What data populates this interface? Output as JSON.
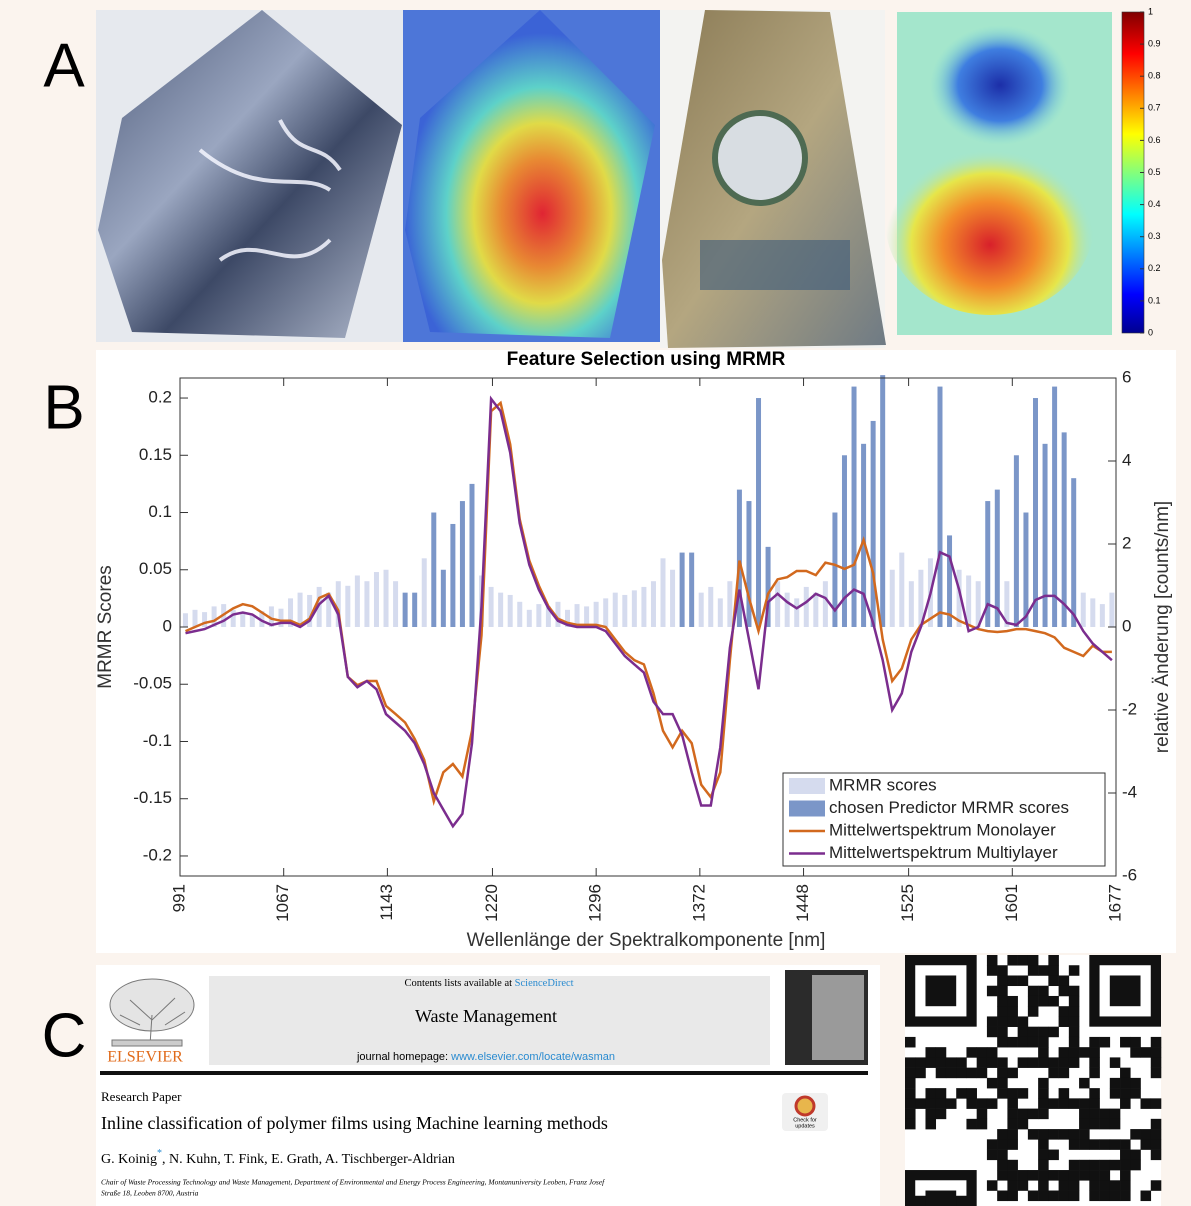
{
  "panel_labels": [
    "A",
    "B",
    "C"
  ],
  "panel_a": {
    "colorbar": {
      "lim": [
        0,
        1
      ],
      "ticks": [
        1,
        0.9,
        0.8,
        0.7,
        0.6,
        0.5,
        0.4,
        0.3,
        0.2,
        0.1,
        0
      ]
    }
  },
  "chart_data": {
    "type": "combo",
    "title": "Feature Selection using MRMR",
    "x_label": "Wellenlänge der Spektralkomponente [nm]",
    "y_label": "MRMR Scores",
    "y2_label": "relative Änderung [counts/nm]",
    "xlim": [
      991,
      1677
    ],
    "xticks": [
      991,
      1067,
      1143,
      1220,
      1296,
      1372,
      1448,
      1525,
      1601,
      1677
    ],
    "ylim": [
      -0.2175,
      0.2175
    ],
    "yticks": [
      -0.2,
      -0.15,
      -0.1,
      -0.05,
      0,
      0.05,
      0.1,
      0.15,
      0.2
    ],
    "y2lim": [
      -6,
      6
    ],
    "y2ticks": [
      -6,
      -4,
      -2,
      0,
      2,
      4,
      6
    ],
    "legend": "lower right",
    "x": [
      995,
      1002,
      1009,
      1016,
      1023,
      1030,
      1037,
      1044,
      1051,
      1058,
      1065,
      1072,
      1079,
      1086,
      1093,
      1100,
      1107,
      1114,
      1121,
      1128,
      1135,
      1142,
      1149,
      1156,
      1163,
      1170,
      1177,
      1184,
      1191,
      1198,
      1205,
      1212,
      1219,
      1226,
      1233,
      1240,
      1247,
      1254,
      1261,
      1268,
      1275,
      1282,
      1289,
      1296,
      1303,
      1310,
      1317,
      1324,
      1331,
      1338,
      1345,
      1352,
      1359,
      1366,
      1373,
      1380,
      1387,
      1394,
      1401,
      1408,
      1415,
      1422,
      1429,
      1436,
      1443,
      1450,
      1457,
      1464,
      1471,
      1478,
      1485,
      1492,
      1499,
      1506,
      1513,
      1520,
      1527,
      1534,
      1541,
      1548,
      1555,
      1562,
      1569,
      1576,
      1583,
      1590,
      1597,
      1604,
      1611,
      1618,
      1625,
      1632,
      1639,
      1646,
      1653,
      1660,
      1667,
      1674
    ],
    "series": [
      {
        "name": "MRMR scores",
        "type": "bar",
        "color": "#d5dbee",
        "values": [
          0.012,
          0.015,
          0.013,
          0.018,
          0.02,
          0.015,
          0.012,
          0.01,
          0.014,
          0.018,
          0.016,
          0.025,
          0.03,
          0.028,
          0.035,
          0.03,
          0.04,
          0.036,
          0.045,
          0.04,
          0.048,
          0.05,
          0.04,
          null,
          null,
          0.06,
          null,
          null,
          null,
          null,
          null,
          0.045,
          0.035,
          0.03,
          0.028,
          0.022,
          0.015,
          0.02,
          0.018,
          0.022,
          0.015,
          0.02,
          0.018,
          0.022,
          0.025,
          0.03,
          0.028,
          0.032,
          0.035,
          0.04,
          0.06,
          0.05,
          null,
          null,
          0.03,
          0.035,
          0.025,
          0.04,
          null,
          null,
          null,
          null,
          0.04,
          0.03,
          0.025,
          0.035,
          0.03,
          0.04,
          null,
          null,
          null,
          null,
          null,
          null,
          0.05,
          0.065,
          0.04,
          0.05,
          0.06,
          null,
          null,
          0.05,
          0.045,
          0.04,
          null,
          null,
          0.04,
          null,
          null,
          null,
          null,
          null,
          null,
          null,
          0.03,
          0.025,
          0.02,
          0.03
        ]
      },
      {
        "name": "chosen Predictor MRMR scores",
        "type": "bar",
        "color": "#7b96c8",
        "values": [
          null,
          null,
          null,
          null,
          null,
          null,
          null,
          null,
          null,
          null,
          null,
          null,
          null,
          null,
          null,
          null,
          null,
          null,
          null,
          null,
          null,
          null,
          null,
          0.03,
          0.03,
          null,
          0.1,
          0.05,
          0.09,
          0.11,
          0.125,
          null,
          null,
          null,
          null,
          null,
          null,
          null,
          null,
          null,
          null,
          null,
          null,
          null,
          null,
          null,
          null,
          null,
          null,
          null,
          null,
          null,
          0.065,
          0.065,
          null,
          null,
          null,
          null,
          0.12,
          0.11,
          0.2,
          0.07,
          null,
          null,
          null,
          null,
          null,
          null,
          0.1,
          0.15,
          0.21,
          0.16,
          0.18,
          0.22,
          null,
          null,
          null,
          null,
          null,
          0.21,
          0.08,
          null,
          null,
          null,
          0.11,
          0.12,
          null,
          0.15,
          0.1,
          0.2,
          0.16,
          0.21,
          0.17,
          0.13,
          null,
          null,
          null,
          null
        ]
      },
      {
        "name": "Mittelwertspektrum Monolayer",
        "type": "line",
        "axis": "y2",
        "color": "#d2691e",
        "values": [
          -0.1,
          0,
          0.1,
          0.15,
          0.3,
          0.45,
          0.55,
          0.5,
          0.35,
          0.2,
          0.15,
          0.15,
          0.05,
          0.2,
          0.7,
          0.8,
          0.4,
          -1.2,
          -1.4,
          -1.3,
          -1.3,
          -1.9,
          -2.1,
          -2.3,
          -2.7,
          -3.2,
          -4.2,
          -3.5,
          -3.3,
          -3.6,
          -2.5,
          -0.2,
          5.2,
          5.4,
          4.4,
          2.6,
          1.6,
          1,
          0.5,
          0.2,
          0.1,
          0.05,
          0.05,
          0.05,
          0,
          -0.3,
          -0.6,
          -0.8,
          -0.9,
          -1.6,
          -2.5,
          -2.9,
          -2.5,
          -2.8,
          -3.8,
          -4.1,
          -3.5,
          -0.8,
          1.6,
          0.7,
          -0.1,
          0.8,
          1.15,
          1.2,
          1.35,
          1.35,
          1.25,
          1.55,
          1.5,
          1.4,
          1.5,
          2.1,
          1.3,
          -0.3,
          -1.3,
          -1,
          -0.3,
          0.05,
          0.2,
          0.35,
          0.3,
          0.15,
          0.05,
          -0.05,
          -0.1,
          -0.12,
          -0.1,
          -0.05,
          -0.05,
          -0.1,
          -0.15,
          -0.25,
          -0.5,
          -0.6,
          -0.7,
          -0.45,
          -0.6,
          -0.6
        ]
      },
      {
        "name": "Mittelwertspektrum Multiylayer",
        "type": "line",
        "axis": "y2",
        "color": "#7b2d8e",
        "values": [
          -0.15,
          -0.1,
          -0.05,
          0.05,
          0.15,
          0.3,
          0.35,
          0.3,
          0.15,
          0.05,
          0.1,
          0.1,
          0,
          0.15,
          0.55,
          0.75,
          0.3,
          -1.2,
          -1.45,
          -1.3,
          -1.5,
          -2.1,
          -2.3,
          -2.5,
          -2.8,
          -3.3,
          -4,
          -4.4,
          -4.8,
          -4.5,
          -2.8,
          0.5,
          5.5,
          5.2,
          4.2,
          2.5,
          1.5,
          0.9,
          0.45,
          0.15,
          0.05,
          0,
          0,
          0,
          -0.1,
          -0.4,
          -0.7,
          -0.9,
          -1.1,
          -1.8,
          -2.1,
          -2.1,
          -2.6,
          -3.5,
          -4.3,
          -4.3,
          -2.9,
          -0.5,
          0.9,
          -0.3,
          -1.5,
          0.6,
          0.8,
          0.6,
          0.45,
          0.6,
          0.8,
          0.7,
          0.4,
          0.7,
          0.9,
          0.8,
          0.1,
          -0.8,
          -2,
          -1.6,
          -0.6,
          0,
          0.8,
          1.8,
          1.7,
          0.9,
          -0.1,
          0,
          0.55,
          0.45,
          0.1,
          0.05,
          0.25,
          0.65,
          0.75,
          0.75,
          0.55,
          0.3,
          -0.1,
          -0.4,
          -0.6,
          -0.8
        ]
      }
    ]
  },
  "panel_c": {
    "contents_prefix": "Contents lists available at",
    "contents_link": "ScienceDirect",
    "journal": "Waste Management",
    "homepage_prefix": "journal homepage:",
    "homepage_link": "www.elsevier.com/locate/wasman",
    "publisher": "ELSEVIER",
    "badge": [
      "Check for",
      "updates"
    ],
    "article_type": "Research Paper",
    "title": "Inline classification of polymer films using Machine learning methods",
    "author_first": "G. Koinig",
    "author_mark": "*",
    "authors_rest": ", N. Kuhn, T. Fink, E. Grath, A. Tischberger-Aldrian",
    "affiliation": [
      "Chair of Waste Processing Technology and Waste Management, Department of Environmental and Energy Process Engineering, Montanuniversity Leoben, Franz Josef",
      "Straße 18, Leoben 8700, Austria"
    ]
  }
}
